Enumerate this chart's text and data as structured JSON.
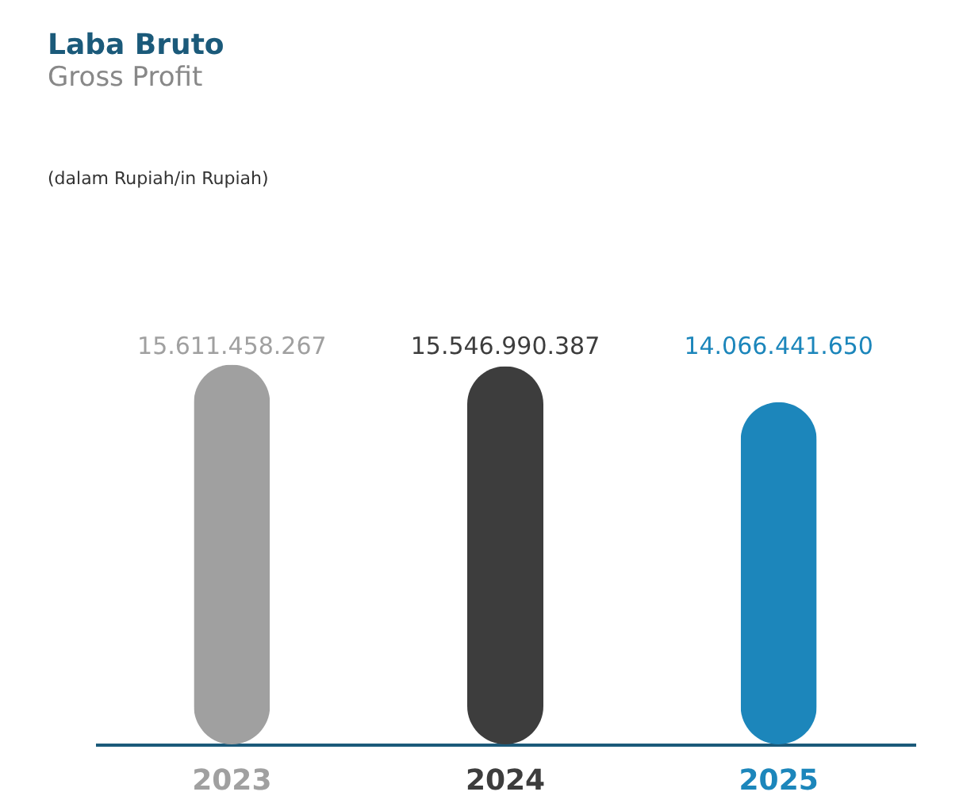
{
  "chart_data": {
    "type": "bar",
    "title": "Laba Bruto",
    "subtitle": "Gross Profit",
    "annotations": [
      "(dalam Rupiah/in Rupiah)"
    ],
    "categories": [
      "2023",
      "2024",
      "2025"
    ],
    "values": [
      15611458267,
      15546990387,
      14066441650
    ],
    "value_labels": [
      "15.611.458.267",
      "15.546.990.387",
      "14.066.441.650"
    ],
    "colors": [
      "#a0a0a0",
      "#3d3d3d",
      "#1c86bb"
    ]
  }
}
